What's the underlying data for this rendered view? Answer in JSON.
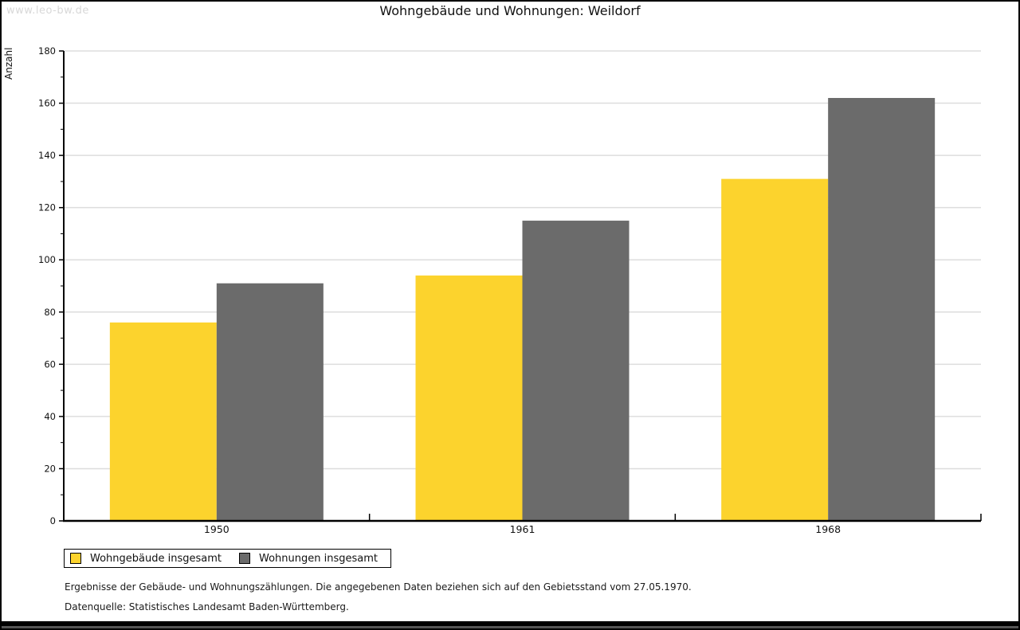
{
  "watermark": "www.leo-bw.de",
  "title": "Wohngebäude und Wohnungen: Weildorf",
  "chart_data": {
    "type": "bar",
    "categories": [
      "1950",
      "1961",
      "1968"
    ],
    "series": [
      {
        "name": "Wohngebäude insgesamt",
        "color": "#FCD32D",
        "values": [
          76,
          94,
          131
        ]
      },
      {
        "name": "Wohnungen insgesamt",
        "color": "#6B6B6B",
        "values": [
          91,
          115,
          162
        ]
      }
    ],
    "title": "Wohngebäude und Wohnungen: Weildorf",
    "xlabel": "",
    "ylabel": "Anzahl",
    "ylim": [
      0,
      180
    ],
    "ytick_step": 20,
    "yminor_step": 10,
    "grid": true,
    "legend_position": "bottom-left"
  },
  "footnotes": {
    "line1": "Ergebnisse der Gebäude- und Wohnungszählungen. Die angegebenen Daten beziehen sich auf den Gebietsstand vom 27.05.1970.",
    "line2": "Datenquelle: Statistisches Landesamt Baden-Württemberg."
  }
}
